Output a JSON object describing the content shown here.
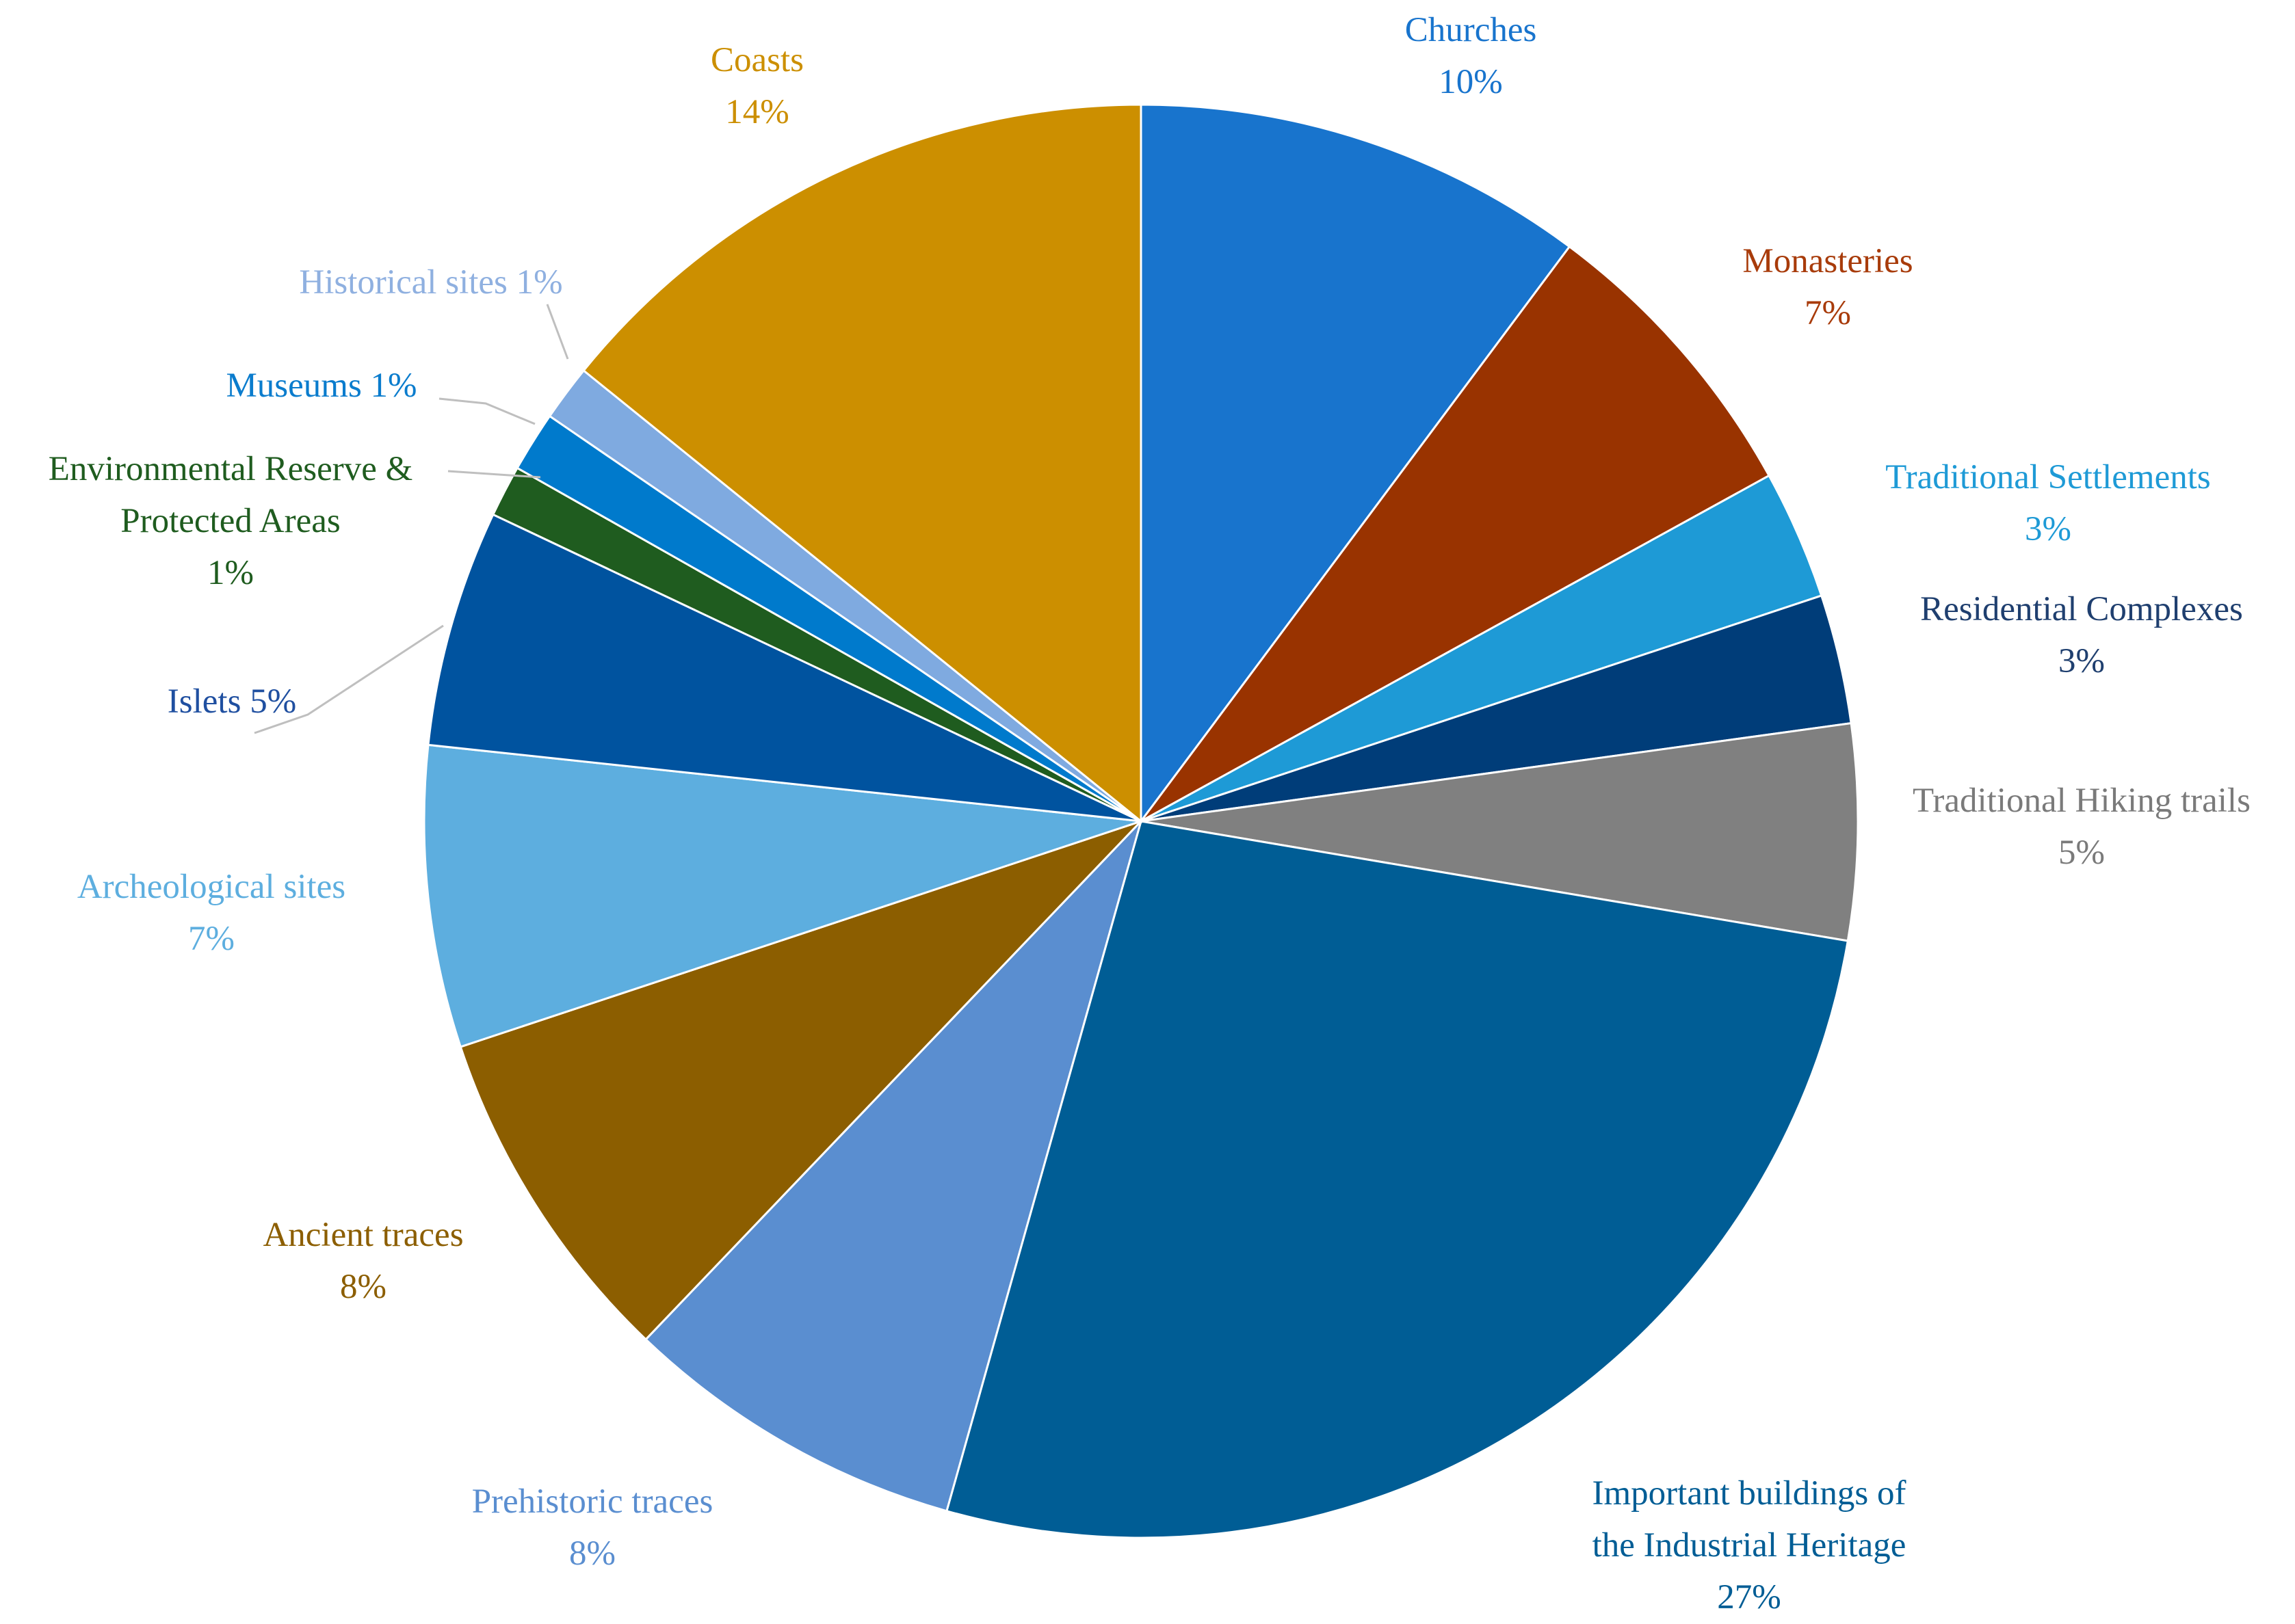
{
  "chart_data": {
    "type": "pie",
    "title": "",
    "start_angle_deg": 0,
    "direction": "clockwise",
    "slices": [
      {
        "label": [
          "Churches"
        ],
        "pct_label": "10%",
        "value": 10.5,
        "color": "#1874CD"
      },
      {
        "label": [
          "Monasteries"
        ],
        "pct_label": "7%",
        "value": 7,
        "color": "#993300"
      },
      {
        "label": [
          "Traditional Settlements"
        ],
        "pct_label": "3%",
        "value": 3,
        "color": "#1E9AD6"
      },
      {
        "label": [
          "Residential Complexes"
        ],
        "pct_label": "3%",
        "value": 3,
        "color": "#003D79"
      },
      {
        "label": [
          "Traditional Hiking trails"
        ],
        "pct_label": "5%",
        "value": 5,
        "color": "#808080"
      },
      {
        "label": [
          "Important buildings of",
          "the Industrial Heritage"
        ],
        "pct_label": "27%",
        "value": 27.5,
        "color": "#005D95"
      },
      {
        "label": [
          "Prehistoric traces"
        ],
        "pct_label": "8%",
        "value": 8,
        "color": "#5A8ED0"
      },
      {
        "label": [
          "Ancient traces"
        ],
        "pct_label": "8%",
        "value": 8,
        "color": "#8C5E00"
      },
      {
        "label": [
          "Archeological sites"
        ],
        "pct_label": "7%",
        "value": 7,
        "color": "#5DAEDF"
      },
      {
        "label": [
          "Islets 5%"
        ],
        "pct_label": "",
        "value": 5.5,
        "color": "#00539F"
      },
      {
        "label": [
          "Environmental Reserve &",
          "Protected Areas"
        ],
        "pct_label": "1%",
        "value": 1.2,
        "color": "#1F5C1F"
      },
      {
        "label": [
          "Museums 1%"
        ],
        "pct_label": "",
        "value": 1.4,
        "color": "#007ACC"
      },
      {
        "label": [
          "Historical sites 1%"
        ],
        "pct_label": "",
        "value": 1.3,
        "color": "#7FAAE0"
      },
      {
        "label": [
          "Coasts"
        ],
        "pct_label": "14%",
        "value": 14.6,
        "color": "#CC8F00"
      }
    ],
    "label_colors": [
      "#1874CD",
      "#A83B0A",
      "#1E9AD6",
      "#1F3F6F",
      "#7A7A7A",
      "#005D95",
      "#5A8ED0",
      "#8C5E00",
      "#5DAEDF",
      "#1F4FA0",
      "#1F5C1F",
      "#0A7CCD",
      "#8FB0E0",
      "#CC8F00"
    ]
  }
}
